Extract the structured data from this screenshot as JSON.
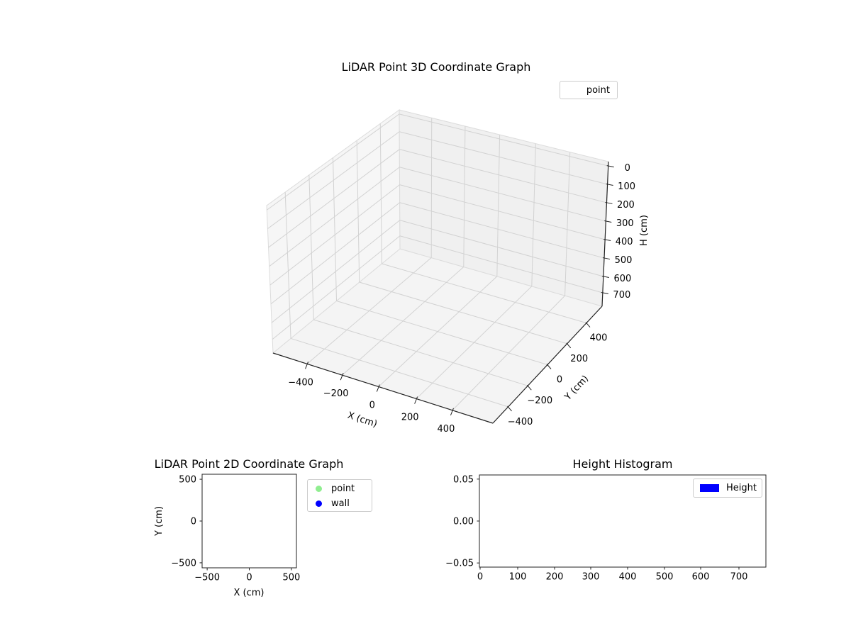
{
  "figure": {
    "background": "#ffffff",
    "text_color": "#000000",
    "axis_line_color": "#222222",
    "grid_color": "#d2d2d2"
  },
  "chart_data": [
    {
      "id": "plot3d",
      "type": "scatter",
      "projection": "3d",
      "title": "LiDAR Point 3D Coordinate Graph",
      "xlabel": "X (cm)",
      "ylabel": "Y (cm)",
      "zlabel": "H (cm)",
      "xticks": [
        "−400",
        "−200",
        "0",
        "200",
        "400"
      ],
      "yticks": [
        "−400",
        "−200",
        "0",
        "200",
        "400"
      ],
      "zticks": [
        "0",
        "100",
        "200",
        "300",
        "400",
        "500",
        "600",
        "700"
      ],
      "xlim": [
        -550,
        550
      ],
      "ylim": [
        -550,
        550
      ],
      "zlim": [
        0,
        700
      ],
      "zaxis_inverted": true,
      "grid": true,
      "legend": {
        "position": "upper right",
        "entries": [
          {
            "label": "point",
            "marker": "none"
          }
        ]
      },
      "series": [
        {
          "name": "point",
          "points": []
        }
      ]
    },
    {
      "id": "plot2d",
      "type": "scatter",
      "title": "LiDAR Point 2D Coordinate Graph",
      "xlabel": "X (cm)",
      "ylabel": "Y (cm)",
      "xticks": [
        "−500",
        "0",
        "500"
      ],
      "yticks": [
        "500",
        "0",
        "−500"
      ],
      "xlim": [
        -560,
        560
      ],
      "ylim": [
        -560,
        560
      ],
      "grid": false,
      "legend": {
        "position": "upper right outside",
        "entries": [
          {
            "label": "point",
            "color": "#90EE90"
          },
          {
            "label": "wall",
            "color": "#0000FF"
          }
        ]
      },
      "series": [
        {
          "name": "point",
          "color": "#90EE90",
          "points": []
        },
        {
          "name": "wall",
          "color": "#0000FF",
          "points": []
        }
      ]
    },
    {
      "id": "histogram",
      "type": "bar",
      "title": "Height Histogram",
      "xlabel": "",
      "ylabel": "",
      "xticks": [
        "0",
        "100",
        "200",
        "300",
        "400",
        "500",
        "600",
        "700"
      ],
      "yticks": [
        "0.05",
        "0.00",
        "−0.05"
      ],
      "xlim": [
        -4,
        773
      ],
      "ylim": [
        -0.055,
        0.055
      ],
      "grid": false,
      "legend": {
        "position": "upper right",
        "entries": [
          {
            "label": "Height",
            "color": "#0000FF"
          }
        ]
      },
      "series": [
        {
          "name": "Height",
          "color": "#0000FF",
          "values": []
        }
      ]
    }
  ]
}
